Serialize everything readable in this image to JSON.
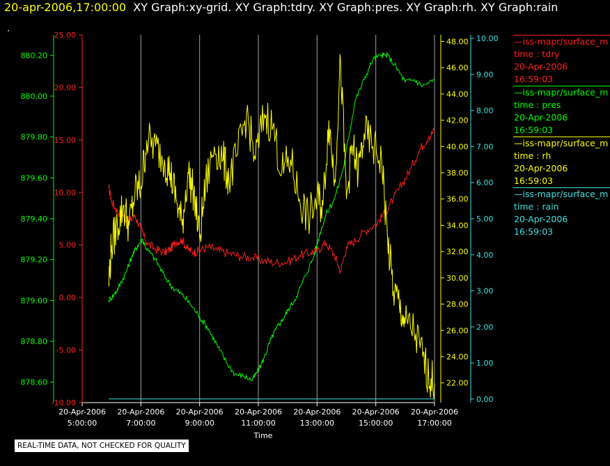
{
  "header": {
    "timestamp": "20-apr-2006,17:00:00",
    "graphs_text": "XY Graph:xy-grid.  XY Graph:tdry.  XY Graph:pres.  XY Graph:rh.  XY Graph:rain",
    "dot": "."
  },
  "note": "REAL-TIME DATA, NOT CHECKED FOR QUALITY",
  "colors": {
    "tdry": "#ff2020",
    "pres": "#00ff00",
    "rh": "#ffff00",
    "rain": "#40e0e0",
    "grid": "#a0a0a0"
  },
  "legend": [
    {
      "name": "—iss-mapr/surface_m",
      "var": "time : tdry",
      "date": "20-Apr-2006",
      "time": "16:59:03",
      "color": "#ff2020"
    },
    {
      "name": "—iss-mapr/surface_m",
      "var": "time : pres",
      "date": "20-Apr-2006",
      "time": "16:59:03",
      "color": "#00ff00"
    },
    {
      "name": "—iss-mapr/surface_m",
      "var": "time : rh",
      "date": "20-Apr-2006",
      "time": "16:59:03",
      "color": "#ffff00"
    },
    {
      "name": "—iss-mapr/surface_m",
      "var": "time : rain",
      "date": "20-Apr-2006",
      "time": "16:59:03",
      "color": "#40e0e0"
    }
  ],
  "chart_data": {
    "type": "line",
    "xlabel": "Time",
    "x_range_hours": [
      5,
      17
    ],
    "x_ticks": [
      {
        "hour": 5,
        "line1": "20-Apr-2006",
        "line2": "5:00:00"
      },
      {
        "hour": 7,
        "line1": "20-Apr-2006",
        "line2": "7:00:00"
      },
      {
        "hour": 9,
        "line1": "20-Apr-2006",
        "line2": "9:00:00"
      },
      {
        "hour": 11,
        "line1": "20-Apr-2006",
        "line2": "11:00:00"
      },
      {
        "hour": 13,
        "line1": "20-Apr-2006",
        "line2": "13:00:00"
      },
      {
        "hour": 15,
        "line1": "20-Apr-2006",
        "line2": "15:00:00"
      },
      {
        "hour": 17,
        "line1": "20-Apr-2006",
        "line2": "17:00:00"
      }
    ],
    "grid": true,
    "axes": {
      "pres": {
        "range": [
          878.5,
          880.3
        ],
        "ticks": [
          "878.60",
          "878.80",
          "879.00",
          "879.20",
          "879.40",
          "879.60",
          "879.80",
          "880.00",
          "880.20"
        ],
        "tick_values": [
          878.6,
          878.8,
          879.0,
          879.2,
          879.4,
          879.6,
          879.8,
          880.0,
          880.2
        ]
      },
      "tdry": {
        "range": [
          -10,
          25
        ],
        "ticks": [
          "-10.00",
          "-5.00",
          "0.00",
          "5.00",
          "10.00",
          "15.00",
          "20.00",
          "25.00"
        ],
        "tick_values": [
          -10,
          -5,
          0,
          5,
          10,
          15,
          20,
          25
        ]
      },
      "rh": {
        "range": [
          20.5,
          48.5
        ],
        "ticks": [
          "22.00",
          "24.00",
          "26.00",
          "28.00",
          "30.00",
          "32.00",
          "34.00",
          "36.00",
          "38.00",
          "40.00",
          "42.00",
          "44.00",
          "46.00",
          "48.00"
        ],
        "tick_values": [
          22,
          24,
          26,
          28,
          30,
          32,
          34,
          36,
          38,
          40,
          42,
          44,
          46,
          48
        ]
      },
      "rain": {
        "range": [
          -0.1,
          10.1
        ],
        "ticks": [
          "0.00",
          "1.00",
          "2.00",
          "3.00",
          "4.00",
          "5.00",
          "6.00",
          "7.00",
          "8.00",
          "9.00",
          "10.00"
        ],
        "tick_values": [
          0,
          1,
          2,
          3,
          4,
          5,
          6,
          7,
          8,
          9,
          10
        ]
      }
    },
    "series": [
      {
        "name": "tdry",
        "axis": "tdry",
        "x": [
          5.9,
          6.0,
          6.2,
          6.4,
          6.6,
          6.8,
          7.0,
          7.2,
          7.5,
          7.8,
          8.0,
          8.2,
          8.4,
          8.6,
          8.8,
          9.0,
          9.3,
          9.6,
          10.0,
          10.4,
          10.8,
          11.2,
          11.6,
          12.0,
          12.4,
          12.8,
          13.0,
          13.3,
          13.6,
          13.8,
          14.0,
          14.3,
          14.6,
          15.0,
          15.3,
          15.6,
          15.9,
          16.2,
          16.5,
          16.8,
          17.0
        ],
        "y": [
          10.5,
          9.2,
          8.2,
          7.8,
          7.2,
          7.8,
          6.5,
          5.2,
          4.6,
          4.3,
          4.6,
          5.3,
          5.5,
          4.6,
          4.3,
          4.5,
          4.8,
          4.5,
          4.2,
          3.9,
          3.8,
          3.5,
          3.3,
          3.4,
          4.0,
          4.3,
          4.5,
          5.2,
          4.0,
          2.5,
          4.8,
          5.4,
          6.3,
          7.0,
          8.0,
          9.4,
          10.8,
          12.3,
          14.1,
          15.3,
          15.9
        ]
      },
      {
        "name": "pres",
        "axis": "pres",
        "x": [
          5.9,
          6.1,
          6.3,
          6.5,
          6.7,
          6.9,
          7.05,
          7.2,
          7.5,
          7.8,
          8.1,
          8.4,
          8.7,
          9.0,
          9.3,
          9.6,
          9.9,
          10.2,
          10.5,
          10.8,
          11.0,
          11.2,
          11.4,
          11.6,
          11.8,
          12.0,
          12.3,
          12.6,
          12.9,
          13.1,
          13.3,
          13.6,
          13.9,
          14.1,
          14.3,
          14.6,
          14.9,
          15.2,
          15.4,
          15.7,
          16.0,
          16.3,
          16.6,
          17.0
        ],
        "y": [
          879.0,
          879.03,
          879.08,
          879.14,
          879.22,
          879.27,
          879.3,
          879.25,
          879.2,
          879.12,
          879.06,
          879.03,
          878.98,
          878.92,
          878.86,
          878.78,
          878.7,
          878.64,
          878.63,
          878.61,
          878.66,
          878.72,
          878.8,
          878.86,
          878.9,
          878.95,
          879.02,
          879.12,
          879.22,
          879.33,
          879.42,
          879.5,
          879.65,
          879.82,
          879.98,
          880.08,
          880.18,
          880.2,
          880.2,
          880.14,
          880.07,
          880.08,
          880.05,
          880.08
        ]
      },
      {
        "name": "rh",
        "axis": "rh",
        "x": [
          5.9,
          6.0,
          6.2,
          6.4,
          6.6,
          6.8,
          7.0,
          7.2,
          7.5,
          7.8,
          8.0,
          8.2,
          8.4,
          8.6,
          8.8,
          9.0,
          9.2,
          9.5,
          9.8,
          10.0,
          10.3,
          10.6,
          10.9,
          11.2,
          11.5,
          11.8,
          12.1,
          12.4,
          12.7,
          13.0,
          13.2,
          13.4,
          13.6,
          13.8,
          14.0,
          14.2,
          14.4,
          14.6,
          14.9,
          15.2,
          15.4,
          15.6,
          15.8,
          16.0,
          16.3,
          16.6,
          16.8,
          17.0
        ],
        "y": [
          29.5,
          32.5,
          34.0,
          35.5,
          34.0,
          36.5,
          37.0,
          40.5,
          40.0,
          39.0,
          38.0,
          36.0,
          34.0,
          38.0,
          36.5,
          33.0,
          37.0,
          40.0,
          39.0,
          37.5,
          39.5,
          42.5,
          39.0,
          42.5,
          41.5,
          38.0,
          39.0,
          36.0,
          34.5,
          36.0,
          35.5,
          42.0,
          37.5,
          46.5,
          36.0,
          40.0,
          38.0,
          41.0,
          40.0,
          39.0,
          33.0,
          29.0,
          28.0,
          26.5,
          26.0,
          24.0,
          22.5,
          22.0
        ]
      },
      {
        "name": "rain",
        "axis": "rain",
        "x": [
          5.9,
          17.0
        ],
        "y": [
          0.0,
          0.0
        ]
      }
    ]
  }
}
